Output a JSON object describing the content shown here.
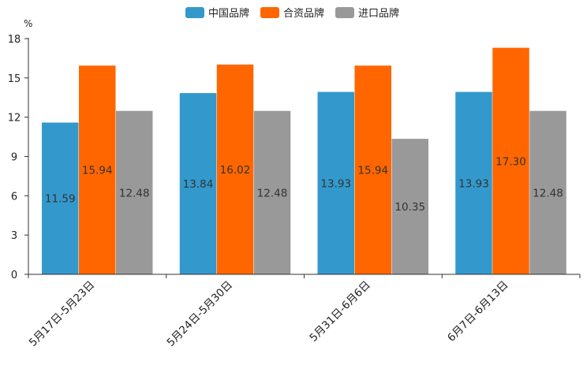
{
  "chart_data": {
    "type": "bar",
    "title": "",
    "xlabel": "",
    "ylabel": "%",
    "ylim": [
      0,
      18
    ],
    "yticks": [
      0,
      3,
      6,
      9,
      12,
      15,
      18
    ],
    "grid": false,
    "legend_position": "top-center",
    "categories": [
      "5月17日-5月23日",
      "5月24日-5月30日",
      "5月31日-6月6日",
      "6月7日-6月13日"
    ],
    "series": [
      {
        "name": "中国品牌",
        "color": "#3399cc",
        "values": [
          11.59,
          13.84,
          13.93,
          13.93
        ],
        "labels": [
          "11.59",
          "13.84",
          "13.93",
          "13.93"
        ]
      },
      {
        "name": "合资品牌",
        "color": "#ff6600",
        "values": [
          15.94,
          16.02,
          15.94,
          17.3
        ],
        "labels": [
          "15.94",
          "16.02",
          "15.94",
          "17.30"
        ]
      },
      {
        "name": "进口品牌",
        "color": "#999999",
        "values": [
          12.48,
          12.48,
          10.35,
          12.48
        ],
        "labels": [
          "12.48",
          "12.48",
          "10.35",
          "12.48"
        ]
      }
    ]
  }
}
